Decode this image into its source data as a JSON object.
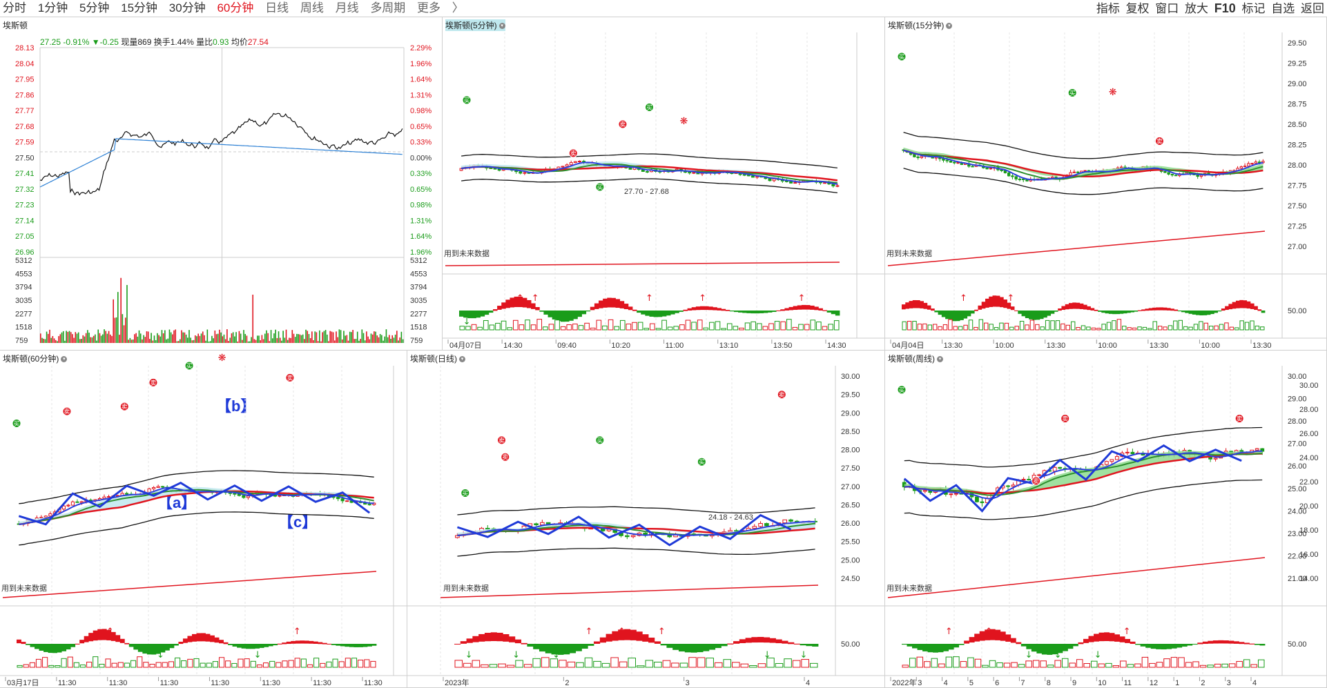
{
  "toolbar": {
    "periods": [
      "分时",
      "1分钟",
      "5分钟",
      "15分钟",
      "30分钟",
      "60分钟",
      "日线",
      "周线",
      "月线",
      "多周期",
      "更多"
    ],
    "active_period": "60分钟",
    "more_arrow": "〉",
    "tools": [
      "指标",
      "复权",
      "窗口",
      "放大",
      "F10",
      "标记",
      "自选",
      "返回"
    ]
  },
  "colors": {
    "up": "#e0141e",
    "down": "#1a9c1a",
    "zigzag": "#1f3ad8",
    "band": "#bfe8ee",
    "cloud": "#8fdc8f"
  },
  "intraday": {
    "title": "埃斯顿",
    "quote": {
      "price": "27.25",
      "pct": "-0.91%",
      "change": "▼-0.25",
      "volume_label": "现量",
      "volume": "869",
      "turnover_label": "换手",
      "turnover": "1.44%",
      "ratio_label": "量比",
      "ratio": "0.93",
      "avg_label": "均价",
      "avg": "27.54"
    },
    "price_ticks": [
      "28.13",
      "28.04",
      "27.95",
      "27.86",
      "27.77",
      "27.68",
      "27.59",
      "27.50",
      "27.41",
      "27.32",
      "27.23",
      "27.14",
      "27.05",
      "26.96"
    ],
    "pct_ticks": [
      "2.29%",
      "1.96%",
      "1.64%",
      "1.31%",
      "0.98%",
      "0.65%",
      "0.33%",
      "0.00%",
      "0.33%",
      "0.65%",
      "0.98%",
      "1.31%",
      "1.64%",
      "1.96%"
    ],
    "vol_ticks": [
      "5312",
      "4553",
      "3794",
      "3035",
      "2277",
      "1518",
      "759"
    ]
  },
  "p5": {
    "title": "埃斯顿(5分钟)",
    "range_note": "27.70 - 27.68",
    "future_note": "用到未来数据",
    "price_ticks": [],
    "x_labels": [
      "04月07日",
      "14:30",
      "09:40",
      "10:20",
      "11:00",
      "13:10",
      "13:50",
      "14:30"
    ]
  },
  "p15": {
    "title": "埃斯顿(15分钟)",
    "future_note": "用到未来数据",
    "price_ticks": [
      "29.50",
      "29.25",
      "29.00",
      "28.75",
      "28.50",
      "28.25",
      "28.00",
      "27.75",
      "27.50",
      "27.25",
      "27.00"
    ],
    "osc_tick": "50.00",
    "x_labels": [
      "04月04日",
      "13:30",
      "10:00",
      "13:30",
      "10:00",
      "13:30",
      "10:00",
      "13:30"
    ]
  },
  "p60": {
    "title": "埃斯顿(60分钟)",
    "future_note": "用到未来数据",
    "waves": [
      "【b】",
      "【a】",
      "【c】"
    ],
    "x_labels": [
      "03月17日",
      "11:30",
      "11:30",
      "11:30",
      "11:30",
      "11:30",
      "11:30",
      "11:30"
    ]
  },
  "pday": {
    "title": "埃斯顿(日线)",
    "range_note": "24.18 - 24.63",
    "future_note": "用到未来数据",
    "price_ticks": [
      "30.00",
      "29.50",
      "29.00",
      "28.50",
      "28.00",
      "27.50",
      "27.00",
      "26.50",
      "26.00",
      "25.50",
      "25.00",
      "24.50"
    ],
    "osc_tick": "50.00",
    "x_labels": [
      "2023年",
      "2",
      "3",
      "4"
    ]
  },
  "pweek": {
    "title": "埃斯顿(周线)",
    "future_note": "用到未来数据",
    "price_ticks": [
      "30.00",
      "29.00",
      "28.00",
      "27.00",
      "26.00",
      "25.00",
      "24.00",
      "23.00",
      "22.00",
      "21.00"
    ],
    "right_ticks": [
      "30.00",
      "28.00",
      "26.00",
      "24.00",
      "22.00",
      "20.00",
      "18.00",
      "16.00",
      "14.00"
    ],
    "osc_tick": "50.00",
    "x_labels": [
      "2022年",
      "3",
      "4",
      "5",
      "6",
      "7",
      "8",
      "9",
      "10",
      "11",
      "12",
      "1",
      "2",
      "3",
      "4"
    ]
  },
  "icons": {
    "panel_dot": "circle-chevron-icon",
    "buy": "buy-marker-icon",
    "sell": "sell-marker-icon",
    "butterfly": "butterfly-icon"
  }
}
